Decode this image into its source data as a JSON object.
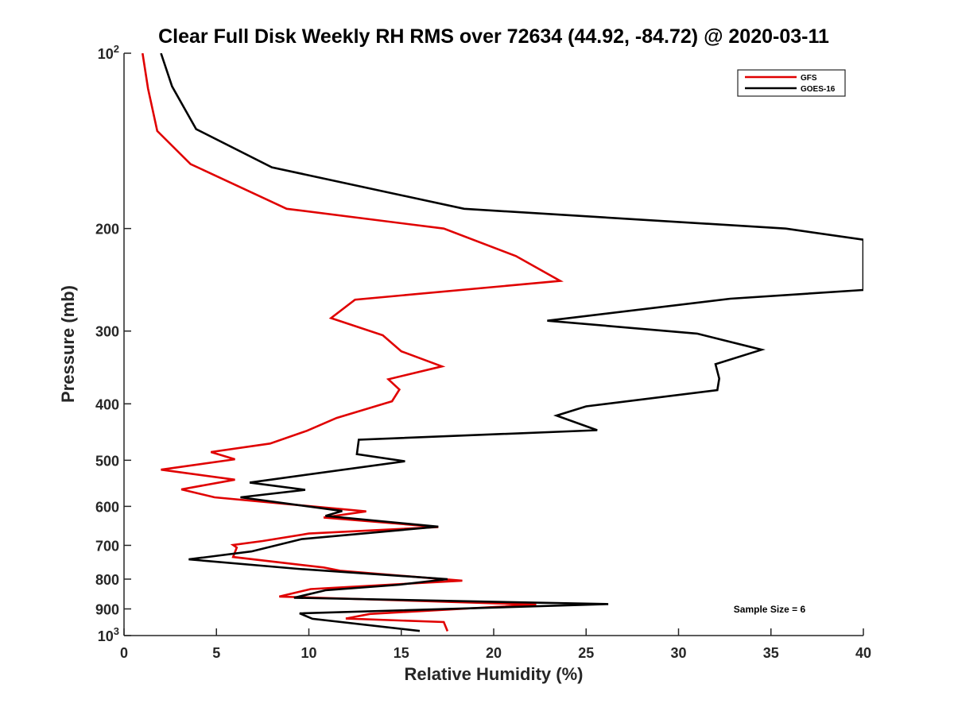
{
  "chart_data": {
    "type": "line",
    "title": "Clear Full Disk Weekly RH RMS over 72634 (44.92, -84.72) @ 2020-03-11",
    "xlabel": "Relative Humidity (%)",
    "ylabel": "Pressure (mb)",
    "xlim": [
      0,
      40
    ],
    "ylim": [
      100,
      1000
    ],
    "yscale": "log",
    "yreversed": true,
    "grid": false,
    "legend_position": "top-right",
    "x_ticks": [
      "0",
      "5",
      "10",
      "15",
      "20",
      "25",
      "30",
      "35",
      "40"
    ],
    "y_ticks": [
      {
        "value": 100,
        "label": "10",
        "sup": "2"
      },
      {
        "value": 200,
        "label": "200"
      },
      {
        "value": 300,
        "label": "300"
      },
      {
        "value": 400,
        "label": "400"
      },
      {
        "value": 500,
        "label": "500"
      },
      {
        "value": 600,
        "label": "600"
      },
      {
        "value": 700,
        "label": "700"
      },
      {
        "value": 800,
        "label": "800"
      },
      {
        "value": 900,
        "label": "900"
      },
      {
        "value": 1000,
        "label": "10",
        "sup": "3"
      }
    ],
    "annotation": "Sample Size = 6",
    "series": [
      {
        "name": "GFS",
        "color": "#e00000",
        "points": [
          [
            1.0,
            100
          ],
          [
            1.3,
            115
          ],
          [
            1.8,
            136
          ],
          [
            3.6,
            155
          ],
          [
            8.8,
            185
          ],
          [
            17.3,
            200
          ],
          [
            21.2,
            223
          ],
          [
            23.6,
            246
          ],
          [
            12.5,
            265
          ],
          [
            11.2,
            285
          ],
          [
            14.0,
            305
          ],
          [
            15.0,
            325
          ],
          [
            17.2,
            345
          ],
          [
            14.3,
            363
          ],
          [
            14.9,
            378
          ],
          [
            14.5,
            396
          ],
          [
            11.5,
            423
          ],
          [
            9.9,
            445
          ],
          [
            7.9,
            468
          ],
          [
            4.7,
            484
          ],
          [
            6.0,
            498
          ],
          [
            2.0,
            519
          ],
          [
            6.0,
            540
          ],
          [
            3.1,
            561
          ],
          [
            4.9,
            579
          ],
          [
            13.1,
            612
          ],
          [
            10.8,
            627
          ],
          [
            17.0,
            651
          ],
          [
            10.0,
            668
          ],
          [
            7.5,
            688
          ],
          [
            5.9,
            699
          ],
          [
            6.1,
            706
          ],
          [
            5.9,
            733
          ],
          [
            10.8,
            764
          ],
          [
            11.7,
            774
          ],
          [
            18.3,
            805
          ],
          [
            10.1,
            832
          ],
          [
            8.4,
            857
          ],
          [
            22.3,
            885
          ],
          [
            13.3,
            918
          ],
          [
            12.0,
            935
          ],
          [
            17.3,
            948
          ],
          [
            17.5,
            983
          ]
        ]
      },
      {
        "name": "GOES-16",
        "color": "#000000",
        "points": [
          [
            2.0,
            100
          ],
          [
            2.6,
            114
          ],
          [
            3.9,
            135
          ],
          [
            8.0,
            157
          ],
          [
            18.4,
            185
          ],
          [
            35.8,
            200
          ],
          [
            40.0,
            209
          ],
          [
            40.0,
            255
          ],
          [
            32.8,
            264
          ],
          [
            22.9,
            288
          ],
          [
            31.0,
            303
          ],
          [
            34.5,
            323
          ],
          [
            32.0,
            342
          ],
          [
            32.2,
            362
          ],
          [
            32.1,
            379
          ],
          [
            25.0,
            404
          ],
          [
            23.4,
            419
          ],
          [
            25.6,
            444
          ],
          [
            12.7,
            461
          ],
          [
            12.6,
            488
          ],
          [
            15.2,
            502
          ],
          [
            6.8,
            546
          ],
          [
            9.8,
            562
          ],
          [
            6.3,
            579
          ],
          [
            11.8,
            611
          ],
          [
            10.9,
            623
          ],
          [
            17.0,
            650
          ],
          [
            9.6,
            683
          ],
          [
            6.9,
            717
          ],
          [
            3.5,
            740
          ],
          [
            9.4,
            768
          ],
          [
            17.5,
            800
          ],
          [
            14.9,
            818
          ],
          [
            10.9,
            836
          ],
          [
            9.2,
            861
          ],
          [
            26.2,
            883
          ],
          [
            9.5,
            916
          ],
          [
            10.2,
            936
          ],
          [
            16.0,
            982
          ]
        ]
      }
    ]
  }
}
